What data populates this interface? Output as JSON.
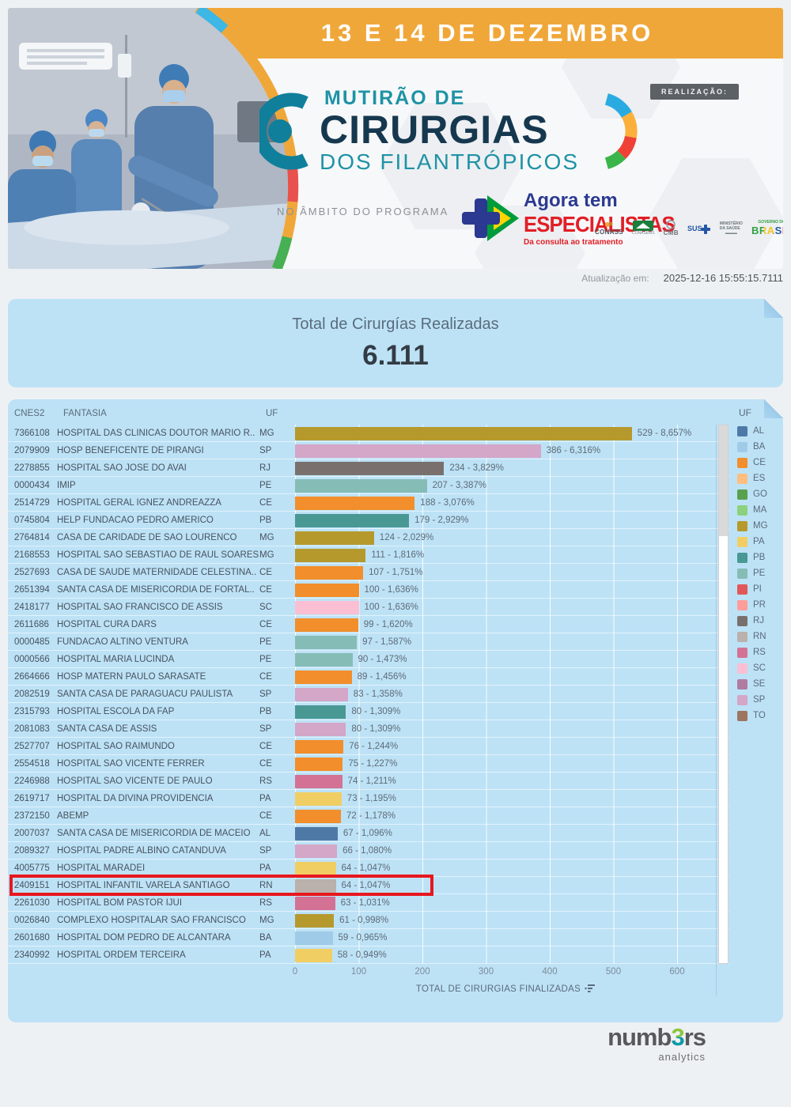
{
  "banner": {
    "date_text": "13 E 14 DE DEZEMBRO",
    "realizacao_label": "REALIZAÇÃO:",
    "logo": {
      "line1": "MUTIRÃO DE",
      "line2": "CIRURGIAS",
      "line3": "DOS FILANTRÓPICOS"
    },
    "programa_label": "NO ÂMBITO DO PROGRAMA",
    "especialistas": {
      "line1": "Agora tem",
      "line2": "ESPECIALISTAS",
      "tagline": "Da consulta ao tratamento"
    },
    "partners": [
      "CONASS",
      "CONASEMS",
      "CMB",
      "SUS",
      "MINISTÉRIO DA SAÚDE",
      "GOVERNO DO",
      "BRASIL"
    ]
  },
  "update": {
    "label": "Atualização em:",
    "timestamp": "2025-12-16 15:55:15.7111"
  },
  "summary": {
    "title": "Total de Cirurgías Realizadas",
    "value": "6.111"
  },
  "table": {
    "headers": {
      "cnes2": "CNES2",
      "fantasia": "FANTASIA",
      "uf": "UF"
    }
  },
  "chart_data": {
    "type": "bar",
    "orientation": "horizontal",
    "title": "Total de Cirurgías Realizadas",
    "xlabel": "TOTAL DE CIRURGIAS FINALIZADAS",
    "x_ticks": [
      0,
      100,
      200,
      300,
      400,
      500,
      600
    ],
    "xlim": [
      0,
      660
    ],
    "grid": true,
    "rows": [
      {
        "cnes2": "7366108",
        "fantasia": "HOSPITAL DAS CLINICAS DOUTOR MARIO R..",
        "uf": "MG",
        "value": 529,
        "pct": "8,657%"
      },
      {
        "cnes2": "2079909",
        "fantasia": "HOSP BENEFICENTE DE PIRANGI",
        "uf": "SP",
        "value": 386,
        "pct": "6,316%"
      },
      {
        "cnes2": "2278855",
        "fantasia": "HOSPITAL SAO JOSE DO AVAI",
        "uf": "RJ",
        "value": 234,
        "pct": "3,829%"
      },
      {
        "cnes2": "0000434",
        "fantasia": "IMIP",
        "uf": "PE",
        "value": 207,
        "pct": "3,387%"
      },
      {
        "cnes2": "2514729",
        "fantasia": "HOSPITAL GERAL IGNEZ ANDREAZZA",
        "uf": "CE",
        "value": 188,
        "pct": "3,076%"
      },
      {
        "cnes2": "0745804",
        "fantasia": "HELP FUNDACAO PEDRO AMERICO",
        "uf": "PB",
        "value": 179,
        "pct": "2,929%"
      },
      {
        "cnes2": "2764814",
        "fantasia": "CASA DE CARIDADE DE SAO LOURENCO",
        "uf": "MG",
        "value": 124,
        "pct": "2,029%"
      },
      {
        "cnes2": "2168553",
        "fantasia": "HOSPITAL SAO SEBASTIAO DE RAUL SOARES",
        "uf": "MG",
        "value": 111,
        "pct": "1,816%"
      },
      {
        "cnes2": "2527693",
        "fantasia": "CASA DE SAUDE MATERNIDADE CELESTINA..",
        "uf": "CE",
        "value": 107,
        "pct": "1,751%"
      },
      {
        "cnes2": "2651394",
        "fantasia": "SANTA CASA DE MISERICORDIA DE FORTAL..",
        "uf": "CE",
        "value": 100,
        "pct": "1,636%"
      },
      {
        "cnes2": "2418177",
        "fantasia": "HOSPITAL SAO FRANCISCO DE ASSIS",
        "uf": "SC",
        "value": 100,
        "pct": "1,636%"
      },
      {
        "cnes2": "2611686",
        "fantasia": "HOSPITAL CURA DARS",
        "uf": "CE",
        "value": 99,
        "pct": "1,620%"
      },
      {
        "cnes2": "0000485",
        "fantasia": "FUNDACAO ALTINO VENTURA",
        "uf": "PE",
        "value": 97,
        "pct": "1,587%"
      },
      {
        "cnes2": "0000566",
        "fantasia": "HOSPITAL MARIA LUCINDA",
        "uf": "PE",
        "value": 90,
        "pct": "1,473%"
      },
      {
        "cnes2": "2664666",
        "fantasia": "HOSP MATERN PAULO SARASATE",
        "uf": "CE",
        "value": 89,
        "pct": "1,456%"
      },
      {
        "cnes2": "2082519",
        "fantasia": "SANTA CASA DE PARAGUACU PAULISTA",
        "uf": "SP",
        "value": 83,
        "pct": "1,358%"
      },
      {
        "cnes2": "2315793",
        "fantasia": "HOSPITAL ESCOLA DA FAP",
        "uf": "PB",
        "value": 80,
        "pct": "1,309%"
      },
      {
        "cnes2": "2081083",
        "fantasia": "SANTA CASA DE ASSIS",
        "uf": "SP",
        "value": 80,
        "pct": "1,309%"
      },
      {
        "cnes2": "2527707",
        "fantasia": "HOSPITAL SAO RAIMUNDO",
        "uf": "CE",
        "value": 76,
        "pct": "1,244%"
      },
      {
        "cnes2": "2554518",
        "fantasia": "HOSPITAL SAO VICENTE FERRER",
        "uf": "CE",
        "value": 75,
        "pct": "1,227%"
      },
      {
        "cnes2": "2246988",
        "fantasia": "HOSPITAL SAO VICENTE DE PAULO",
        "uf": "RS",
        "value": 74,
        "pct": "1,211%"
      },
      {
        "cnes2": "2619717",
        "fantasia": "HOSPITAL DA DIVINA PROVIDENCIA",
        "uf": "PA",
        "value": 73,
        "pct": "1,195%"
      },
      {
        "cnes2": "2372150",
        "fantasia": "ABEMP",
        "uf": "CE",
        "value": 72,
        "pct": "1,178%"
      },
      {
        "cnes2": "2007037",
        "fantasia": "SANTA CASA DE MISERICORDIA DE MACEIO",
        "uf": "AL",
        "value": 67,
        "pct": "1,096%"
      },
      {
        "cnes2": "2089327",
        "fantasia": "HOSPITAL PADRE ALBINO CATANDUVA",
        "uf": "SP",
        "value": 66,
        "pct": "1,080%"
      },
      {
        "cnes2": "4005775",
        "fantasia": "HOSPITAL MARADEI",
        "uf": "PA",
        "value": 64,
        "pct": "1,047%"
      },
      {
        "cnes2": "2409151",
        "fantasia": "HOSPITAL INFANTIL VARELA SANTIAGO",
        "uf": "RN",
        "value": 64,
        "pct": "1,047%",
        "highlighted": true
      },
      {
        "cnes2": "2261030",
        "fantasia": "HOSPITAL BOM PASTOR IJUI",
        "uf": "RS",
        "value": 63,
        "pct": "1,031%"
      },
      {
        "cnes2": "0026840",
        "fantasia": "COMPLEXO HOSPITALAR SAO FRANCISCO",
        "uf": "MG",
        "value": 61,
        "pct": "0,998%"
      },
      {
        "cnes2": "2601680",
        "fantasia": "HOSPITAL DOM PEDRO DE ALCANTARA",
        "uf": "BA",
        "value": 59,
        "pct": "0,965%"
      },
      {
        "cnes2": "2340992",
        "fantasia": "HOSPITAL ORDEM TERCEIRA",
        "uf": "PA",
        "value": 58,
        "pct": "0,949%"
      }
    ]
  },
  "uf_colors": {
    "AL": "#4E79A7",
    "BA": "#A0CBE8",
    "CE": "#F28E2B",
    "ES": "#FFBE7D",
    "GO": "#59A14F",
    "MA": "#8CD17D",
    "MG": "#B6992D",
    "PA": "#F1CE63",
    "PB": "#499894",
    "PE": "#86BCB6",
    "PI": "#E15759",
    "PR": "#FF9D9A",
    "RJ": "#79706E",
    "RN": "#BAB0AC",
    "RS": "#D37295",
    "SC": "#FABFD2",
    "SE": "#B07AA1",
    "SP": "#D4A6C8",
    "TO": "#9D7660"
  },
  "legend": {
    "title": "UF",
    "items": [
      {
        "label": "AL",
        "color": "#4E79A7"
      },
      {
        "label": "BA",
        "color": "#A0CBE8"
      },
      {
        "label": "CE",
        "color": "#F28E2B"
      },
      {
        "label": "ES",
        "color": "#FFBE7D"
      },
      {
        "label": "GO",
        "color": "#59A14F"
      },
      {
        "label": "MA",
        "color": "#8CD17D"
      },
      {
        "label": "MG",
        "color": "#B6992D"
      },
      {
        "label": "PA",
        "color": "#F1CE63"
      },
      {
        "label": "PB",
        "color": "#499894"
      },
      {
        "label": "PE",
        "color": "#86BCB6"
      },
      {
        "label": "PI",
        "color": "#E15759"
      },
      {
        "label": "PR",
        "color": "#FF9D9A"
      },
      {
        "label": "RJ",
        "color": "#79706E"
      },
      {
        "label": "RN",
        "color": "#BAB0AC"
      },
      {
        "label": "RS",
        "color": "#D37295"
      },
      {
        "label": "SC",
        "color": "#FABFD2"
      },
      {
        "label": "SE",
        "color": "#B07AA1"
      },
      {
        "label": "SP",
        "color": "#D4A6C8"
      },
      {
        "label": "TO",
        "color": "#9D7660"
      }
    ]
  },
  "footer": {
    "brand_prefix": "numb",
    "brand_three": "3",
    "brand_suffix": "rs",
    "sub": "analytics"
  }
}
